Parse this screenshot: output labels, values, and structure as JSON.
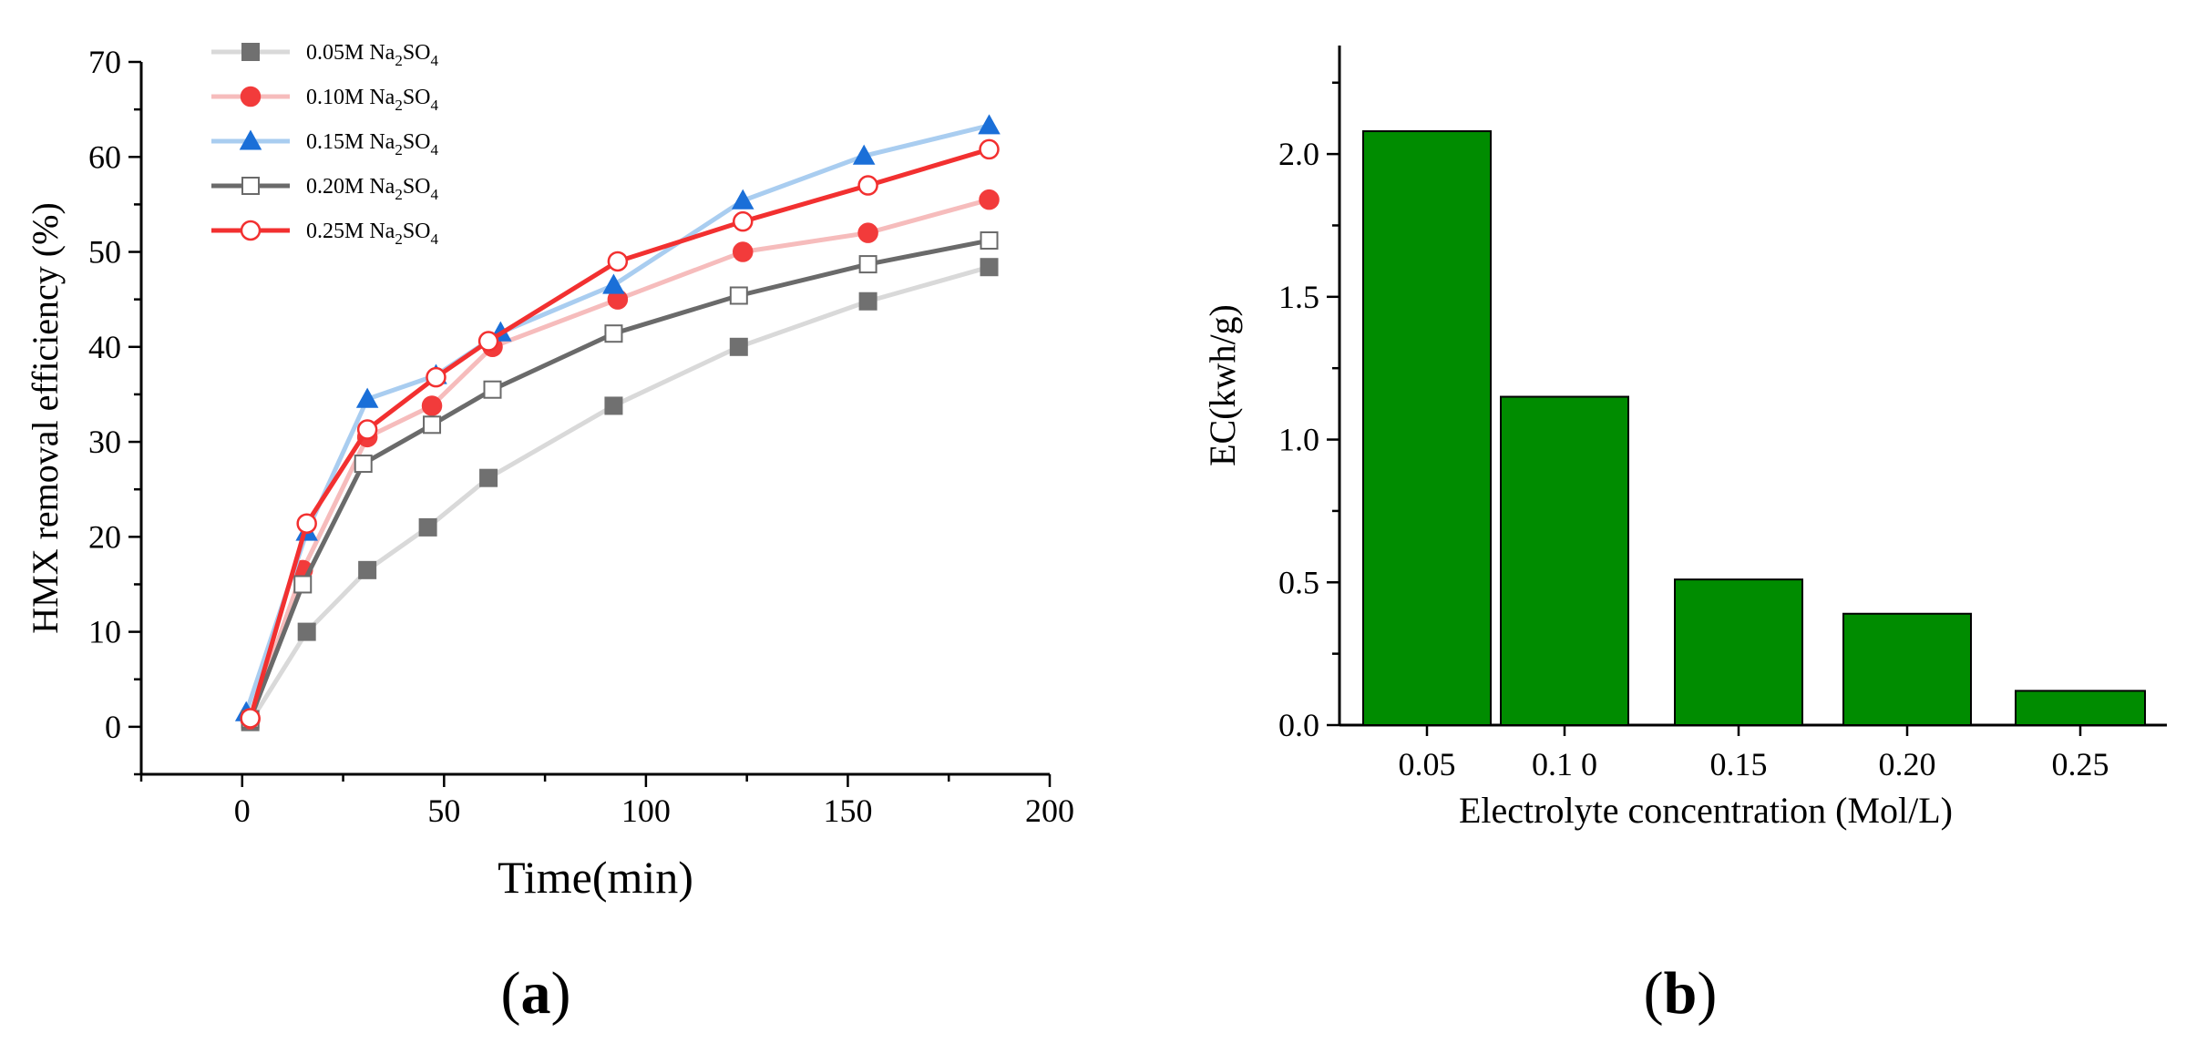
{
  "chart_data": [
    {
      "type": "line",
      "panel_label": "a",
      "xlabel": "Time(min)",
      "ylabel": "HMX removal efficiency (%)",
      "xlim": [
        -25,
        200
      ],
      "ylim": [
        -5,
        70
      ],
      "xticks": [
        0,
        50,
        100,
        150,
        200
      ],
      "yticks": [
        0,
        10,
        20,
        30,
        40,
        50,
        60,
        70
      ],
      "legend_position": "top-left",
      "series": [
        {
          "name": "0.05M Na2SO4",
          "label_prefix": "0.05M Na",
          "label_sub1": "2",
          "label_mid": "SO",
          "label_sub2": "4",
          "color": "#d9d9d9",
          "marker": "square",
          "marker_fill": "#707070",
          "marker_stroke": "#707070",
          "x": [
            2,
            16,
            31,
            46,
            61,
            92,
            123,
            155,
            185
          ],
          "y": [
            0.5,
            10,
            16.5,
            21,
            26.2,
            33.8,
            40,
            44.8,
            48.4
          ]
        },
        {
          "name": "0.10M Na2SO4",
          "label_prefix": "0.10M Na",
          "label_sub1": "2",
          "label_mid": "SO",
          "label_sub2": "4",
          "color": "#f6bcbc",
          "marker": "circle",
          "marker_fill": "#f23b3b",
          "marker_stroke": "#f23b3b",
          "x": [
            2,
            15,
            31,
            47,
            62,
            93,
            124,
            155,
            185
          ],
          "y": [
            0.8,
            16.5,
            30.5,
            33.8,
            40,
            45,
            50,
            52,
            55.5
          ]
        },
        {
          "name": "0.15M Na2SO4",
          "label_prefix": "0.15M Na",
          "label_sub1": "2",
          "label_mid": "SO",
          "label_sub2": "4",
          "color": "#a9cdf0",
          "marker": "triangle",
          "marker_fill": "#1a6fd8",
          "marker_stroke": "#1a6fd8",
          "x": [
            1,
            16,
            31,
            48,
            64,
            92,
            124,
            154,
            185
          ],
          "y": [
            1.5,
            20.5,
            34.5,
            37,
            41.5,
            46.5,
            55.4,
            60.1,
            63.3
          ]
        },
        {
          "name": "0.20M Na2SO4",
          "label_prefix": "0.20M Na",
          "label_sub1": "2",
          "label_mid": "SO",
          "label_sub2": "4",
          "color": "#6a6a6a",
          "marker": "open-square",
          "marker_fill": "#ffffff",
          "marker_stroke": "#6a6a6a",
          "x": [
            2,
            15,
            30,
            47,
            62,
            92,
            123,
            155,
            185
          ],
          "y": [
            0.8,
            15,
            27.7,
            31.8,
            35.5,
            41.4,
            45.4,
            48.7,
            51.2
          ]
        },
        {
          "name": "0.25M Na2SO4",
          "label_prefix": "0.25M Na",
          "label_sub1": "2",
          "label_mid": "SO",
          "label_sub2": "4",
          "color": "#f23030",
          "marker": "open-circle",
          "marker_fill": "#ffffff",
          "marker_stroke": "#f23030",
          "x": [
            2,
            16,
            31,
            48,
            61,
            93,
            124,
            155,
            185
          ],
          "y": [
            0.9,
            21.4,
            31.3,
            36.8,
            40.6,
            49,
            53.2,
            57,
            60.8
          ]
        }
      ]
    },
    {
      "type": "bar",
      "panel_label": "b",
      "xlabel": "Electrolyte concentration (Mol/L)",
      "ylabel": "EC(kwh/g)",
      "ylim": [
        0,
        2.38
      ],
      "yticks": [
        0.0,
        0.5,
        1.0,
        1.5,
        2.0
      ],
      "ytick_labels": [
        "0.0",
        "0.5",
        "1.0",
        "1.5",
        "2.0"
      ],
      "categories": [
        "0.05",
        "0.1 0",
        "0.15",
        "0.20",
        "0.25"
      ],
      "values": [
        2.08,
        1.15,
        0.51,
        0.39,
        0.12
      ],
      "bar_color": "#008c00",
      "bar_edge_color": "#000000"
    }
  ]
}
